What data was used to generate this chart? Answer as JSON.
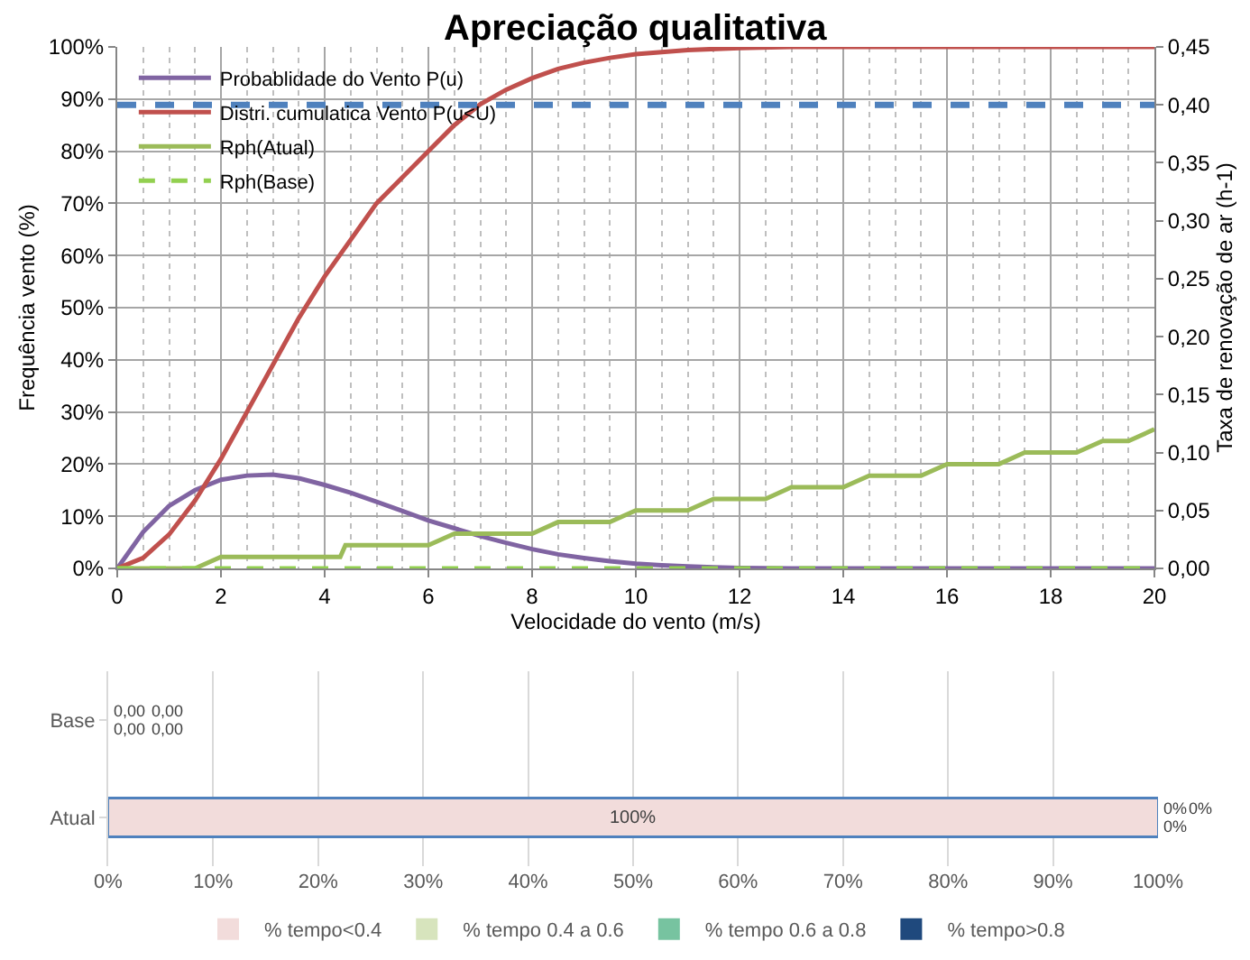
{
  "chart_data": [
    {
      "type": "line",
      "title": "Apreciação qualitativa",
      "xlabel": "Velocidade do vento (m/s)",
      "ylabel": "Frequência vento (%)",
      "y2label": "Taxa de renovação de ar (h-1)",
      "xlim": [
        0,
        20
      ],
      "xticks": [
        0,
        2,
        4,
        6,
        8,
        10,
        12,
        14,
        16,
        18,
        20
      ],
      "ylim": [
        0,
        100
      ],
      "yticks": [
        {
          "value": 0,
          "label": "0%"
        },
        {
          "value": 10,
          "label": "10%"
        },
        {
          "value": 20,
          "label": "20%"
        },
        {
          "value": 30,
          "label": "30%"
        },
        {
          "value": 40,
          "label": "40%"
        },
        {
          "value": 50,
          "label": "50%"
        },
        {
          "value": 60,
          "label": "60%"
        },
        {
          "value": 70,
          "label": "70%"
        },
        {
          "value": 80,
          "label": "80%"
        },
        {
          "value": 90,
          "label": "90%"
        },
        {
          "value": 100,
          "label": "100%"
        }
      ],
      "y2lim": [
        0,
        0.45
      ],
      "y2ticks": [
        {
          "value": 0,
          "label": "0,00"
        },
        {
          "value": 0.05,
          "label": "0,05"
        },
        {
          "value": 0.1,
          "label": "0,10"
        },
        {
          "value": 0.15,
          "label": "0,15"
        },
        {
          "value": 0.2,
          "label": "0,20"
        },
        {
          "value": 0.25,
          "label": "0,25"
        },
        {
          "value": 0.3,
          "label": "0,30"
        },
        {
          "value": 0.35,
          "label": "0,35"
        },
        {
          "value": 0.4,
          "label": "0,40"
        },
        {
          "value": 0.45,
          "label": "0,45"
        }
      ],
      "grid": true,
      "legend": "top left",
      "marker": "none",
      "line_style": "solid",
      "series": [
        {
          "name": "Probablidade do Vento P(u)",
          "color": "#8064a2",
          "x": [
            0,
            0.5,
            1,
            1.5,
            2,
            2.5,
            3,
            3.5,
            4,
            4.5,
            5,
            5.5,
            6,
            6.5,
            7,
            7.5,
            8,
            8.5,
            9,
            9.5,
            10,
            10.5,
            11,
            11.5,
            12,
            13,
            14,
            16,
            18,
            20
          ],
          "values": [
            0,
            7,
            12,
            15,
            17,
            17.8,
            18,
            17.3,
            16,
            14.5,
            12.8,
            11,
            9.2,
            7.7,
            6.2,
            4.9,
            3.7,
            2.7,
            2,
            1.4,
            0.9,
            0.6,
            0.4,
            0.2,
            0.1,
            0,
            0,
            0,
            0,
            0
          ]
        },
        {
          "name": "Distri. cumulatica Vento P(u<U)",
          "color": "#c0504d",
          "x": [
            0,
            0.5,
            1,
            1.5,
            2,
            2.5,
            3,
            3.5,
            4,
            4.5,
            5,
            5.5,
            6,
            6.5,
            7,
            7.5,
            8,
            8.5,
            9,
            9.5,
            10,
            11,
            12,
            13,
            14,
            16,
            18,
            20
          ],
          "values": [
            0,
            2,
            6.5,
            13,
            21,
            30,
            39,
            48,
            56,
            63,
            70,
            75,
            80,
            85,
            89,
            91.8,
            94,
            95.8,
            97,
            97.9,
            98.6,
            99.4,
            99.8,
            100,
            100,
            100,
            100,
            100
          ]
        },
        {
          "name": "Rph(Atual)",
          "color": "#9bbb59",
          "axis": "y2",
          "x": [
            0,
            0.5,
            1,
            1.5,
            2,
            2.5,
            3,
            3.5,
            4,
            4.3,
            4.4,
            4.5,
            5,
            5.5,
            6,
            6.5,
            7,
            7.5,
            8,
            8.5,
            9,
            9.5,
            10,
            10.5,
            11,
            11.5,
            12,
            12.5,
            13,
            13.5,
            14,
            14.5,
            15,
            15.5,
            16,
            16.5,
            17,
            17.5,
            18,
            18.5,
            19,
            19.5,
            20
          ],
          "values": [
            0,
            0,
            0,
            0,
            0.01,
            0.01,
            0.01,
            0.01,
            0.01,
            0.01,
            0.02,
            0.02,
            0.02,
            0.02,
            0.02,
            0.03,
            0.03,
            0.03,
            0.03,
            0.04,
            0.04,
            0.04,
            0.05,
            0.05,
            0.05,
            0.06,
            0.06,
            0.06,
            0.07,
            0.07,
            0.07,
            0.08,
            0.08,
            0.08,
            0.09,
            0.09,
            0.09,
            0.1,
            0.1,
            0.1,
            0.11,
            0.11,
            0.12
          ]
        },
        {
          "name": "Rph(Base)",
          "color": "#92d050",
          "axis": "y2",
          "line_style": "dashed",
          "x": [
            0,
            20
          ],
          "values": [
            0,
            0
          ]
        }
      ],
      "ref_lines": [
        {
          "axis": "y2",
          "value": 0.4,
          "color": "#4f81bd",
          "line_style": "dashed"
        }
      ]
    },
    {
      "type": "bar",
      "orientation": "horizontal",
      "stacked": true,
      "categories": [
        "Base",
        "Atual"
      ],
      "xlim": [
        0,
        100
      ],
      "xticks": [
        {
          "value": 0,
          "label": "0%"
        },
        {
          "value": 10,
          "label": "10%"
        },
        {
          "value": 20,
          "label": "20%"
        },
        {
          "value": 30,
          "label": "30%"
        },
        {
          "value": 40,
          "label": "40%"
        },
        {
          "value": 50,
          "label": "50%"
        },
        {
          "value": 60,
          "label": "60%"
        },
        {
          "value": 70,
          "label": "70%"
        },
        {
          "value": 80,
          "label": "80%"
        },
        {
          "value": 90,
          "label": "90%"
        },
        {
          "value": 100,
          "label": "100%"
        }
      ],
      "grid": "x",
      "legend": "bottom",
      "series": [
        {
          "name": "% tempo<0.4",
          "color": "#f2dcdb",
          "values": [
            0,
            100
          ],
          "value_labels": [
            "0,00",
            "100%"
          ]
        },
        {
          "name": "% tempo 0.4 a 0.6",
          "color": "#d7e4bd",
          "values": [
            0,
            0
          ],
          "value_labels": [
            "0,00",
            "0%"
          ]
        },
        {
          "name": "% tempo 0.6 a 0.8",
          "color": "#77c3a0",
          "values": [
            0,
            0
          ],
          "value_labels": [
            "0,00",
            "0%"
          ]
        },
        {
          "name": "% tempo>0.8",
          "color": "#1f497d",
          "values": [
            0,
            0
          ],
          "value_labels": [
            "0,00",
            "0%"
          ]
        }
      ]
    }
  ]
}
